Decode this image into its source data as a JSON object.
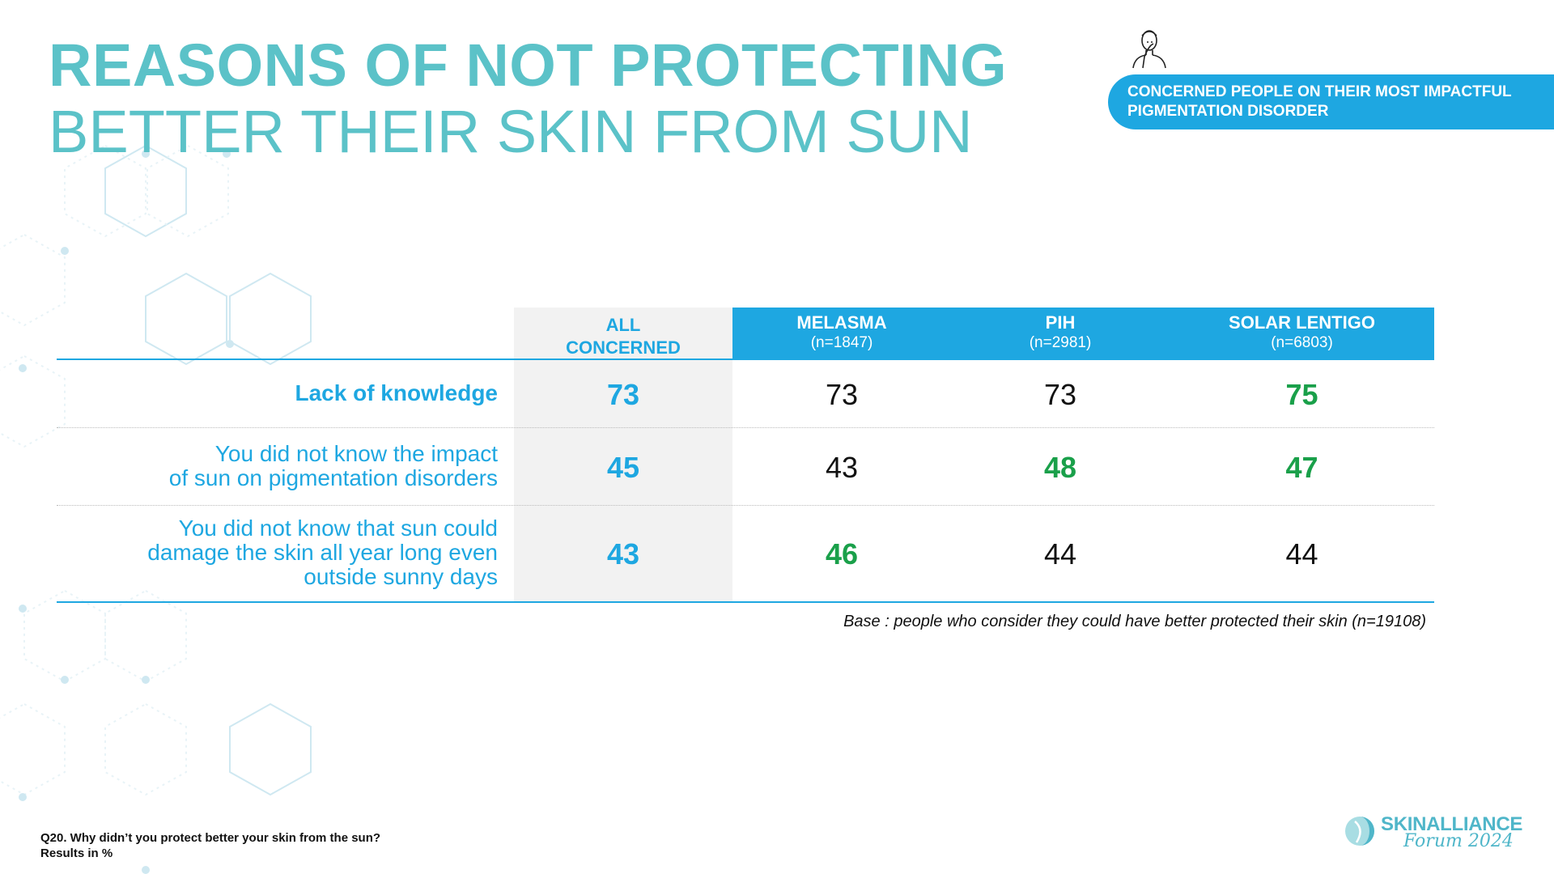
{
  "title": {
    "line1": "REASONS OF NOT PROTECTING",
    "line2": "BETTER THEIR SKIN FROM SUN"
  },
  "badge": {
    "line1": "CONCERNED PEOPLE ON THEIR MOST IMPACTFUL",
    "line2": "PIGMENTATION DISORDER",
    "icon": "person-touching-face-icon"
  },
  "colors": {
    "accent": "#1ea7e1",
    "title": "#5bc2c8",
    "highlight": "#1aa04a",
    "grey": "#f2f2f2"
  },
  "chart_data": {
    "type": "table",
    "columns": [
      {
        "name_line1": "ALL",
        "name_line2": "CONCERNED",
        "n": ""
      },
      {
        "name": "MELASMA",
        "n": "(n=1847)"
      },
      {
        "name": "PIH",
        "n": "(n=2981)"
      },
      {
        "name": "SOLAR LENTIGO",
        "n": "(n=6803)"
      }
    ],
    "rows": [
      {
        "label_lines": [
          "Lack of knowledge"
        ],
        "values": [
          "73",
          "73",
          "73",
          "75"
        ],
        "highlight": [
          false,
          false,
          false,
          true
        ]
      },
      {
        "label_lines": [
          "You did not know the impact",
          "of sun on pigmentation disorders"
        ],
        "values": [
          "45",
          "43",
          "48",
          "47"
        ],
        "highlight": [
          false,
          false,
          true,
          true
        ]
      },
      {
        "label_lines": [
          "You did not know that sun could",
          "damage the skin all year long even",
          "outside sunny days"
        ],
        "values": [
          "43",
          "46",
          "44",
          "44"
        ],
        "highlight": [
          false,
          true,
          false,
          false
        ]
      }
    ]
  },
  "base_note": "Base : people who consider they could have better protected their skin (n=19108)",
  "footnote": {
    "line1": "Q20. Why didn’t you protect better your skin from the sun?",
    "line2": "Results in %"
  },
  "logo": {
    "name": "SKINALLIANCE",
    "sub": "Forum 2024",
    "icon": "skinalliance-logo-icon"
  }
}
